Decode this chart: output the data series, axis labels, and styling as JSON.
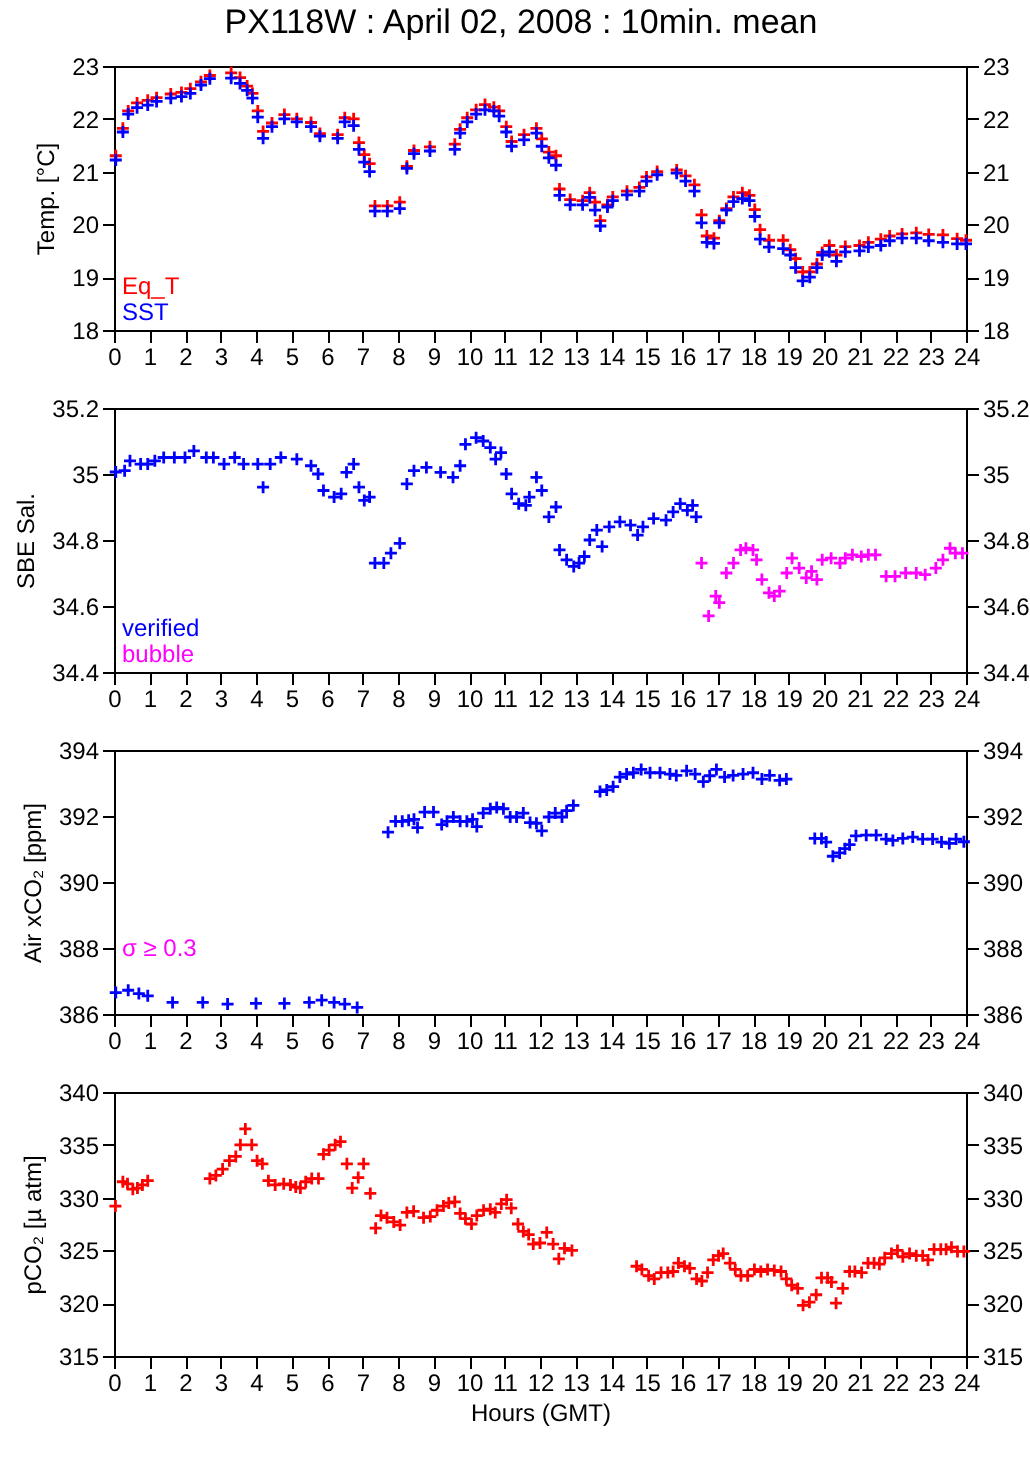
{
  "chart_data": [
    {
      "type": "scatter",
      "title": "PX118W : April 02, 2008 : 10min. mean",
      "ylabel": "Temp. [°C]",
      "xlim": [
        0,
        24
      ],
      "xticks": [
        0,
        1,
        2,
        3,
        4,
        5,
        6,
        7,
        8,
        9,
        10,
        11,
        12,
        13,
        14,
        15,
        16,
        17,
        18,
        19,
        20,
        21,
        22,
        23,
        24
      ],
      "ylim": [
        18,
        23
      ],
      "yticks": [
        18,
        19,
        20,
        21,
        22,
        23
      ],
      "y2lim": [
        18,
        23
      ],
      "y2ticks": [
        18,
        19,
        20,
        21,
        22,
        23
      ],
      "marker": "cross",
      "legend": "bottom left",
      "series": [
        {
          "name": "Eq_T",
          "color": "#ff0000",
          "x": [
            0.05,
            0.25,
            0.4,
            0.65,
            0.95,
            1.2,
            1.6,
            1.9,
            2.15,
            2.45,
            2.7,
            3.3,
            3.55,
            3.75,
            3.9,
            4.05,
            4.2,
            4.45,
            4.8,
            5.15,
            5.55,
            5.8,
            6.3,
            6.5,
            6.75,
            6.9,
            7.05,
            7.2,
            7.35,
            7.7,
            8.05,
            8.25,
            8.45,
            8.9,
            9.6,
            9.75,
            9.95,
            10.2,
            10.45,
            10.7,
            10.85,
            11.05,
            11.2,
            11.55,
            11.9,
            12.05,
            12.25,
            12.45,
            12.55,
            12.85,
            13.2,
            13.4,
            13.55,
            13.7,
            13.9,
            14.05,
            14.45,
            14.8,
            15.0,
            15.3,
            15.85,
            16.1,
            16.35,
            16.55,
            16.7,
            16.9,
            17.05,
            17.25,
            17.45,
            17.7,
            17.9,
            18.05,
            18.2,
            18.45,
            18.85,
            19.05,
            19.2,
            19.4,
            19.6,
            19.8,
            19.95,
            20.15,
            20.35,
            20.6,
            21.0,
            21.25,
            21.6,
            21.85,
            22.2,
            22.6,
            22.95,
            23.35,
            23.75,
            24.0
          ],
          "values": [
            21.3,
            21.82,
            22.15,
            22.3,
            22.35,
            22.4,
            22.47,
            22.5,
            22.57,
            22.7,
            22.82,
            22.87,
            22.78,
            22.62,
            22.48,
            22.15,
            21.76,
            21.92,
            22.08,
            22.0,
            21.93,
            21.72,
            21.7,
            22.02,
            22.0,
            21.55,
            21.32,
            21.15,
            20.35,
            20.35,
            20.42,
            21.1,
            21.4,
            21.47,
            21.52,
            21.8,
            22.02,
            22.17,
            22.27,
            22.22,
            22.15,
            21.85,
            21.57,
            21.7,
            21.82,
            21.62,
            21.37,
            21.3,
            20.67,
            20.47,
            20.45,
            20.6,
            20.42,
            20.07,
            20.37,
            20.52,
            20.63,
            20.7,
            20.9,
            21.0,
            21.03,
            20.92,
            20.75,
            20.18,
            19.78,
            19.74,
            20.07,
            20.3,
            20.52,
            20.6,
            20.55,
            20.28,
            19.9,
            19.7,
            19.7,
            19.52,
            19.35,
            19.1,
            19.1,
            19.25,
            19.47,
            19.6,
            19.42,
            19.58,
            19.6,
            19.66,
            19.72,
            19.78,
            19.82,
            19.84,
            19.81,
            19.8,
            19.73,
            19.7
          ]
        },
        {
          "name": "SST",
          "color": "#0000ff",
          "x": [
            0.05,
            0.25,
            0.4,
            0.65,
            0.95,
            1.2,
            1.6,
            1.9,
            2.15,
            2.45,
            2.7,
            3.3,
            3.55,
            3.75,
            3.9,
            4.05,
            4.2,
            4.45,
            4.8,
            5.15,
            5.55,
            5.8,
            6.3,
            6.5,
            6.75,
            6.9,
            7.05,
            7.2,
            7.35,
            7.7,
            8.05,
            8.25,
            8.45,
            8.9,
            9.6,
            9.75,
            9.95,
            10.2,
            10.45,
            10.7,
            10.85,
            11.05,
            11.2,
            11.55,
            11.9,
            12.05,
            12.25,
            12.45,
            12.55,
            12.85,
            13.2,
            13.4,
            13.55,
            13.7,
            13.9,
            14.05,
            14.45,
            14.8,
            15.0,
            15.3,
            15.85,
            16.1,
            16.35,
            16.55,
            16.7,
            16.9,
            17.05,
            17.25,
            17.45,
            17.7,
            17.9,
            18.05,
            18.2,
            18.45,
            18.85,
            19.05,
            19.2,
            19.4,
            19.6,
            19.8,
            19.95,
            20.15,
            20.35,
            20.6,
            21.0,
            21.25,
            21.6,
            21.85,
            22.2,
            22.6,
            22.95,
            23.35,
            23.75,
            24.0
          ],
          "values": [
            21.22,
            21.75,
            22.09,
            22.21,
            22.26,
            22.33,
            22.39,
            22.42,
            22.48,
            22.64,
            22.76,
            22.77,
            22.67,
            22.54,
            22.39,
            22.03,
            21.63,
            21.85,
            22.0,
            21.94,
            21.85,
            21.67,
            21.63,
            21.94,
            21.87,
            21.42,
            21.18,
            21.0,
            20.25,
            20.25,
            20.3,
            21.06,
            21.34,
            21.39,
            21.42,
            21.73,
            21.94,
            22.09,
            22.17,
            22.15,
            22.05,
            21.75,
            21.48,
            21.6,
            21.73,
            21.48,
            21.26,
            21.12,
            20.55,
            20.37,
            20.37,
            20.51,
            20.27,
            19.97,
            20.33,
            20.45,
            20.56,
            20.63,
            20.82,
            20.94,
            20.97,
            20.82,
            20.63,
            20.03,
            19.66,
            19.64,
            20.03,
            20.27,
            20.43,
            20.49,
            20.45,
            20.15,
            19.72,
            19.57,
            19.54,
            19.42,
            19.18,
            18.93,
            19.0,
            19.18,
            19.42,
            19.48,
            19.3,
            19.48,
            19.5,
            19.57,
            19.6,
            19.69,
            19.74,
            19.74,
            19.69,
            19.66,
            19.63,
            19.63
          ]
        }
      ]
    },
    {
      "type": "scatter",
      "ylabel": "SBE Sal.",
      "xlim": [
        0,
        24
      ],
      "xticks": [
        0,
        1,
        2,
        3,
        4,
        5,
        6,
        7,
        8,
        9,
        10,
        11,
        12,
        13,
        14,
        15,
        16,
        17,
        18,
        19,
        20,
        21,
        22,
        23,
        24
      ],
      "ylim": [
        34.4,
        35.2
      ],
      "yticks": [
        34.4,
        34.6,
        34.8,
        35,
        35.2
      ],
      "y2lim": [
        34.4,
        35.2
      ],
      "y2ticks": [
        34.4,
        34.6,
        34.8,
        35,
        35.2
      ],
      "marker": "cross",
      "legend": "bottom left",
      "series": [
        {
          "name": "verified",
          "color": "#0000ff",
          "x": [
            0.05,
            0.3,
            0.45,
            0.75,
            0.95,
            1.15,
            1.4,
            1.7,
            2.0,
            2.25,
            2.6,
            2.8,
            3.1,
            3.4,
            3.65,
            4.05,
            4.2,
            4.4,
            4.7,
            5.15,
            5.55,
            5.75,
            5.9,
            6.2,
            6.4,
            6.55,
            6.75,
            6.9,
            7.05,
            7.2,
            7.35,
            7.6,
            7.8,
            8.05,
            8.25,
            8.45,
            8.8,
            9.2,
            9.55,
            9.75,
            9.9,
            10.2,
            10.4,
            10.6,
            10.75,
            10.9,
            11.05,
            11.2,
            11.4,
            11.6,
            11.7,
            11.9,
            12.05,
            12.25,
            12.45,
            12.55,
            12.75,
            12.95,
            13.1,
            13.25,
            13.4,
            13.6,
            13.75,
            13.95,
            14.25,
            14.55,
            14.75,
            14.9,
            15.2,
            15.55,
            15.75,
            15.95,
            16.15,
            16.3,
            16.4
          ],
          "values": [
            35.006,
            35.01,
            35.04,
            35.03,
            35.03,
            35.04,
            35.05,
            35.05,
            35.05,
            35.07,
            35.05,
            35.05,
            35.03,
            35.05,
            35.03,
            35.03,
            34.96,
            35.03,
            35.05,
            35.045,
            35.025,
            35.0,
            34.95,
            34.93,
            34.94,
            35.005,
            35.03,
            34.96,
            34.92,
            34.93,
            34.73,
            34.73,
            34.76,
            34.79,
            34.97,
            35.01,
            35.02,
            35.005,
            34.99,
            35.025,
            35.09,
            35.11,
            35.1,
            35.08,
            35.045,
            35.065,
            35.0,
            34.94,
            34.91,
            34.905,
            34.93,
            34.99,
            34.95,
            34.87,
            34.9,
            34.77,
            34.74,
            34.72,
            34.73,
            34.75,
            34.8,
            34.83,
            34.78,
            34.84,
            34.855,
            34.845,
            34.815,
            34.84,
            34.865,
            34.86,
            34.885,
            34.91,
            34.89,
            34.905,
            34.87
          ]
        },
        {
          "name": "bubble",
          "color": "#ff00ff",
          "x": [
            16.55,
            16.75,
            16.95,
            17.05,
            17.25,
            17.45,
            17.65,
            17.8,
            18.0,
            18.1,
            18.25,
            18.45,
            18.6,
            18.75,
            18.95,
            19.1,
            19.3,
            19.5,
            19.65,
            19.8,
            19.95,
            20.2,
            20.45,
            20.6,
            20.8,
            21.05,
            21.25,
            21.45,
            21.75,
            22.0,
            22.3,
            22.6,
            22.85,
            23.15,
            23.35,
            23.55,
            23.7,
            23.9
          ],
          "values": [
            34.73,
            34.57,
            34.63,
            34.61,
            34.7,
            34.73,
            34.77,
            34.775,
            34.77,
            34.74,
            34.68,
            34.64,
            34.63,
            34.645,
            34.7,
            34.745,
            34.715,
            34.685,
            34.705,
            34.68,
            34.74,
            34.745,
            34.73,
            34.745,
            34.755,
            34.75,
            34.755,
            34.755,
            34.69,
            34.69,
            34.7,
            34.7,
            34.695,
            34.715,
            34.74,
            34.775,
            34.76,
            34.76
          ]
        }
      ]
    },
    {
      "type": "scatter",
      "ylabel": "Air xCO₂ [ppm]",
      "annotations": [
        "σ ≥ 0.3"
      ],
      "xlim": [
        0,
        24
      ],
      "xticks": [
        0,
        1,
        2,
        3,
        4,
        5,
        6,
        7,
        8,
        9,
        10,
        11,
        12,
        13,
        14,
        15,
        16,
        17,
        18,
        19,
        20,
        21,
        22,
        23,
        24
      ],
      "ylim": [
        386,
        394
      ],
      "yticks": [
        386,
        388,
        390,
        392,
        394
      ],
      "y2lim": [
        386,
        394
      ],
      "y2ticks": [
        386,
        388,
        390,
        392,
        394
      ],
      "marker": "cross",
      "series": [
        {
          "color": "#0000ff",
          "x": [
            0.05,
            0.4,
            0.7,
            0.95,
            1.65,
            2.5,
            3.2,
            4.0,
            4.8,
            5.5,
            5.85,
            6.2,
            6.5,
            6.85,
            7.72,
            7.93,
            8.12,
            8.3,
            8.45,
            8.55,
            8.75,
            9.0,
            9.23,
            9.38,
            9.56,
            9.75,
            9.94,
            10.1,
            10.22,
            10.4,
            10.6,
            10.78,
            10.97,
            11.16,
            11.34,
            11.53,
            11.72,
            11.9,
            12.05,
            12.25,
            12.43,
            12.62,
            12.75,
            12.94,
            13.69,
            13.88,
            14.06,
            14.25,
            14.44,
            14.63,
            14.85,
            15.1,
            15.38,
            15.66,
            15.84,
            16.13,
            16.37,
            16.6,
            16.78,
            16.97,
            17.2,
            17.44,
            17.72,
            18.0,
            18.25,
            18.47,
            18.75,
            18.94,
            19.74,
            19.93,
            20.06,
            20.25,
            20.44,
            20.59,
            20.72,
            20.9,
            21.19,
            21.47,
            21.75,
            21.94,
            22.22,
            22.5,
            22.78,
            23.06,
            23.31,
            23.53,
            23.72,
            23.94
          ],
          "values": [
            386.65,
            386.72,
            386.62,
            386.55,
            386.35,
            386.35,
            386.3,
            386.32,
            386.32,
            386.35,
            386.42,
            386.35,
            386.3,
            386.2,
            391.51,
            391.84,
            391.84,
            391.87,
            391.9,
            391.65,
            392.12,
            392.12,
            391.74,
            391.84,
            391.97,
            391.84,
            391.84,
            391.9,
            391.68,
            392.09,
            392.22,
            392.26,
            392.22,
            391.97,
            391.97,
            392.09,
            391.8,
            391.78,
            391.55,
            391.97,
            392.09,
            391.97,
            392.16,
            392.32,
            392.74,
            392.79,
            392.89,
            393.18,
            393.27,
            393.31,
            393.41,
            393.31,
            393.31,
            393.27,
            393.23,
            393.37,
            393.27,
            393.04,
            393.22,
            393.41,
            393.18,
            393.23,
            393.27,
            393.31,
            393.12,
            393.23,
            393.08,
            393.12,
            391.32,
            391.32,
            391.21,
            390.78,
            390.88,
            391.01,
            391.13,
            391.4,
            391.42,
            391.42,
            391.3,
            391.26,
            391.32,
            391.36,
            391.3,
            391.3,
            391.21,
            391.17,
            391.3,
            391.22
          ]
        }
      ]
    },
    {
      "type": "scatter",
      "ylabel": "pCO₂ [µ atm]",
      "xlabel": "Hours (GMT)",
      "xlim": [
        0,
        24
      ],
      "xticks": [
        0,
        1,
        2,
        3,
        4,
        5,
        6,
        7,
        8,
        9,
        10,
        11,
        12,
        13,
        14,
        15,
        16,
        17,
        18,
        19,
        20,
        21,
        22,
        23,
        24
      ],
      "ylim": [
        315,
        340
      ],
      "yticks": [
        315,
        320,
        325,
        330,
        335,
        340
      ],
      "y2lim": [
        315,
        340
      ],
      "y2ticks": [
        315,
        320,
        325,
        330,
        335,
        340
      ],
      "marker": "cross",
      "series": [
        {
          "color": "#ff0000",
          "x": [
            0.04,
            0.25,
            0.38,
            0.53,
            0.66,
            0.8,
            0.95,
            2.7,
            2.87,
            3.06,
            3.25,
            3.43,
            3.56,
            3.7,
            3.88,
            4.03,
            4.18,
            4.35,
            4.54,
            4.78,
            4.97,
            5.12,
            5.25,
            5.4,
            5.57,
            5.76,
            5.9,
            6.06,
            6.23,
            6.38,
            6.56,
            6.71,
            6.88,
            7.03,
            7.22,
            7.37,
            7.52,
            7.69,
            7.88,
            8.06,
            8.25,
            8.44,
            8.72,
            8.91,
            9.1,
            9.28,
            9.43,
            9.6,
            9.75,
            9.9,
            10.07,
            10.22,
            10.41,
            10.6,
            10.74,
            10.91,
            11.06,
            11.19,
            11.38,
            11.53,
            11.68,
            11.81,
            12.0,
            12.19,
            12.37,
            12.53,
            12.69,
            12.9,
            14.72,
            14.87,
            15.06,
            15.22,
            15.41,
            15.6,
            15.75,
            15.9,
            16.07,
            16.22,
            16.41,
            16.56,
            16.72,
            16.88,
            17.03,
            17.16,
            17.35,
            17.5,
            17.66,
            17.85,
            18.04,
            18.22,
            18.41,
            18.6,
            18.79,
            18.94,
            19.09,
            19.26,
            19.41,
            19.59,
            19.78,
            19.93,
            20.1,
            20.21,
            20.34,
            20.53,
            20.72,
            20.87,
            21.06,
            21.24,
            21.41,
            21.56,
            21.71,
            21.9,
            22.07,
            22.22,
            22.41,
            22.6,
            22.78,
            22.93,
            23.1,
            23.29,
            23.44,
            23.59,
            23.76,
            23.94
          ],
          "values": [
            329.2,
            331.5,
            331.3,
            330.8,
            330.9,
            331.2,
            331.6,
            331.8,
            332.1,
            332.7,
            333.5,
            333.9,
            335.0,
            336.5,
            335.0,
            333.5,
            333.2,
            331.6,
            331.2,
            331.3,
            331.2,
            331.0,
            330.9,
            331.5,
            331.8,
            331.8,
            334.1,
            334.5,
            335.0,
            335.3,
            333.2,
            330.9,
            331.9,
            333.2,
            330.4,
            327.1,
            328.3,
            328.1,
            327.7,
            327.4,
            328.6,
            328.7,
            328.1,
            328.2,
            328.8,
            329.2,
            329.5,
            329.6,
            328.5,
            328.0,
            327.5,
            328.3,
            328.8,
            328.9,
            328.6,
            329.4,
            329.8,
            329.0,
            327.5,
            326.8,
            326.5,
            325.6,
            325.7,
            326.7,
            325.6,
            324.2,
            325.2,
            325.0,
            323.5,
            323.2,
            322.6,
            322.3,
            322.9,
            322.9,
            323.0,
            323.8,
            323.5,
            323.3,
            322.3,
            322.1,
            322.9,
            324.1,
            324.5,
            324.7,
            323.8,
            323.2,
            322.6,
            322.6,
            323.2,
            323.0,
            323.2,
            323.1,
            323.0,
            322.3,
            321.7,
            321.4,
            319.8,
            320.1,
            320.8,
            322.4,
            322.4,
            322.0,
            320.0,
            321.4,
            323.0,
            323.0,
            322.9,
            323.8,
            323.8,
            323.7,
            324.3,
            324.7,
            325.0,
            324.4,
            324.7,
            324.5,
            324.5,
            324.1,
            325.1,
            325.1,
            325.1,
            325.3,
            324.9,
            324.9
          ]
        }
      ]
    }
  ]
}
